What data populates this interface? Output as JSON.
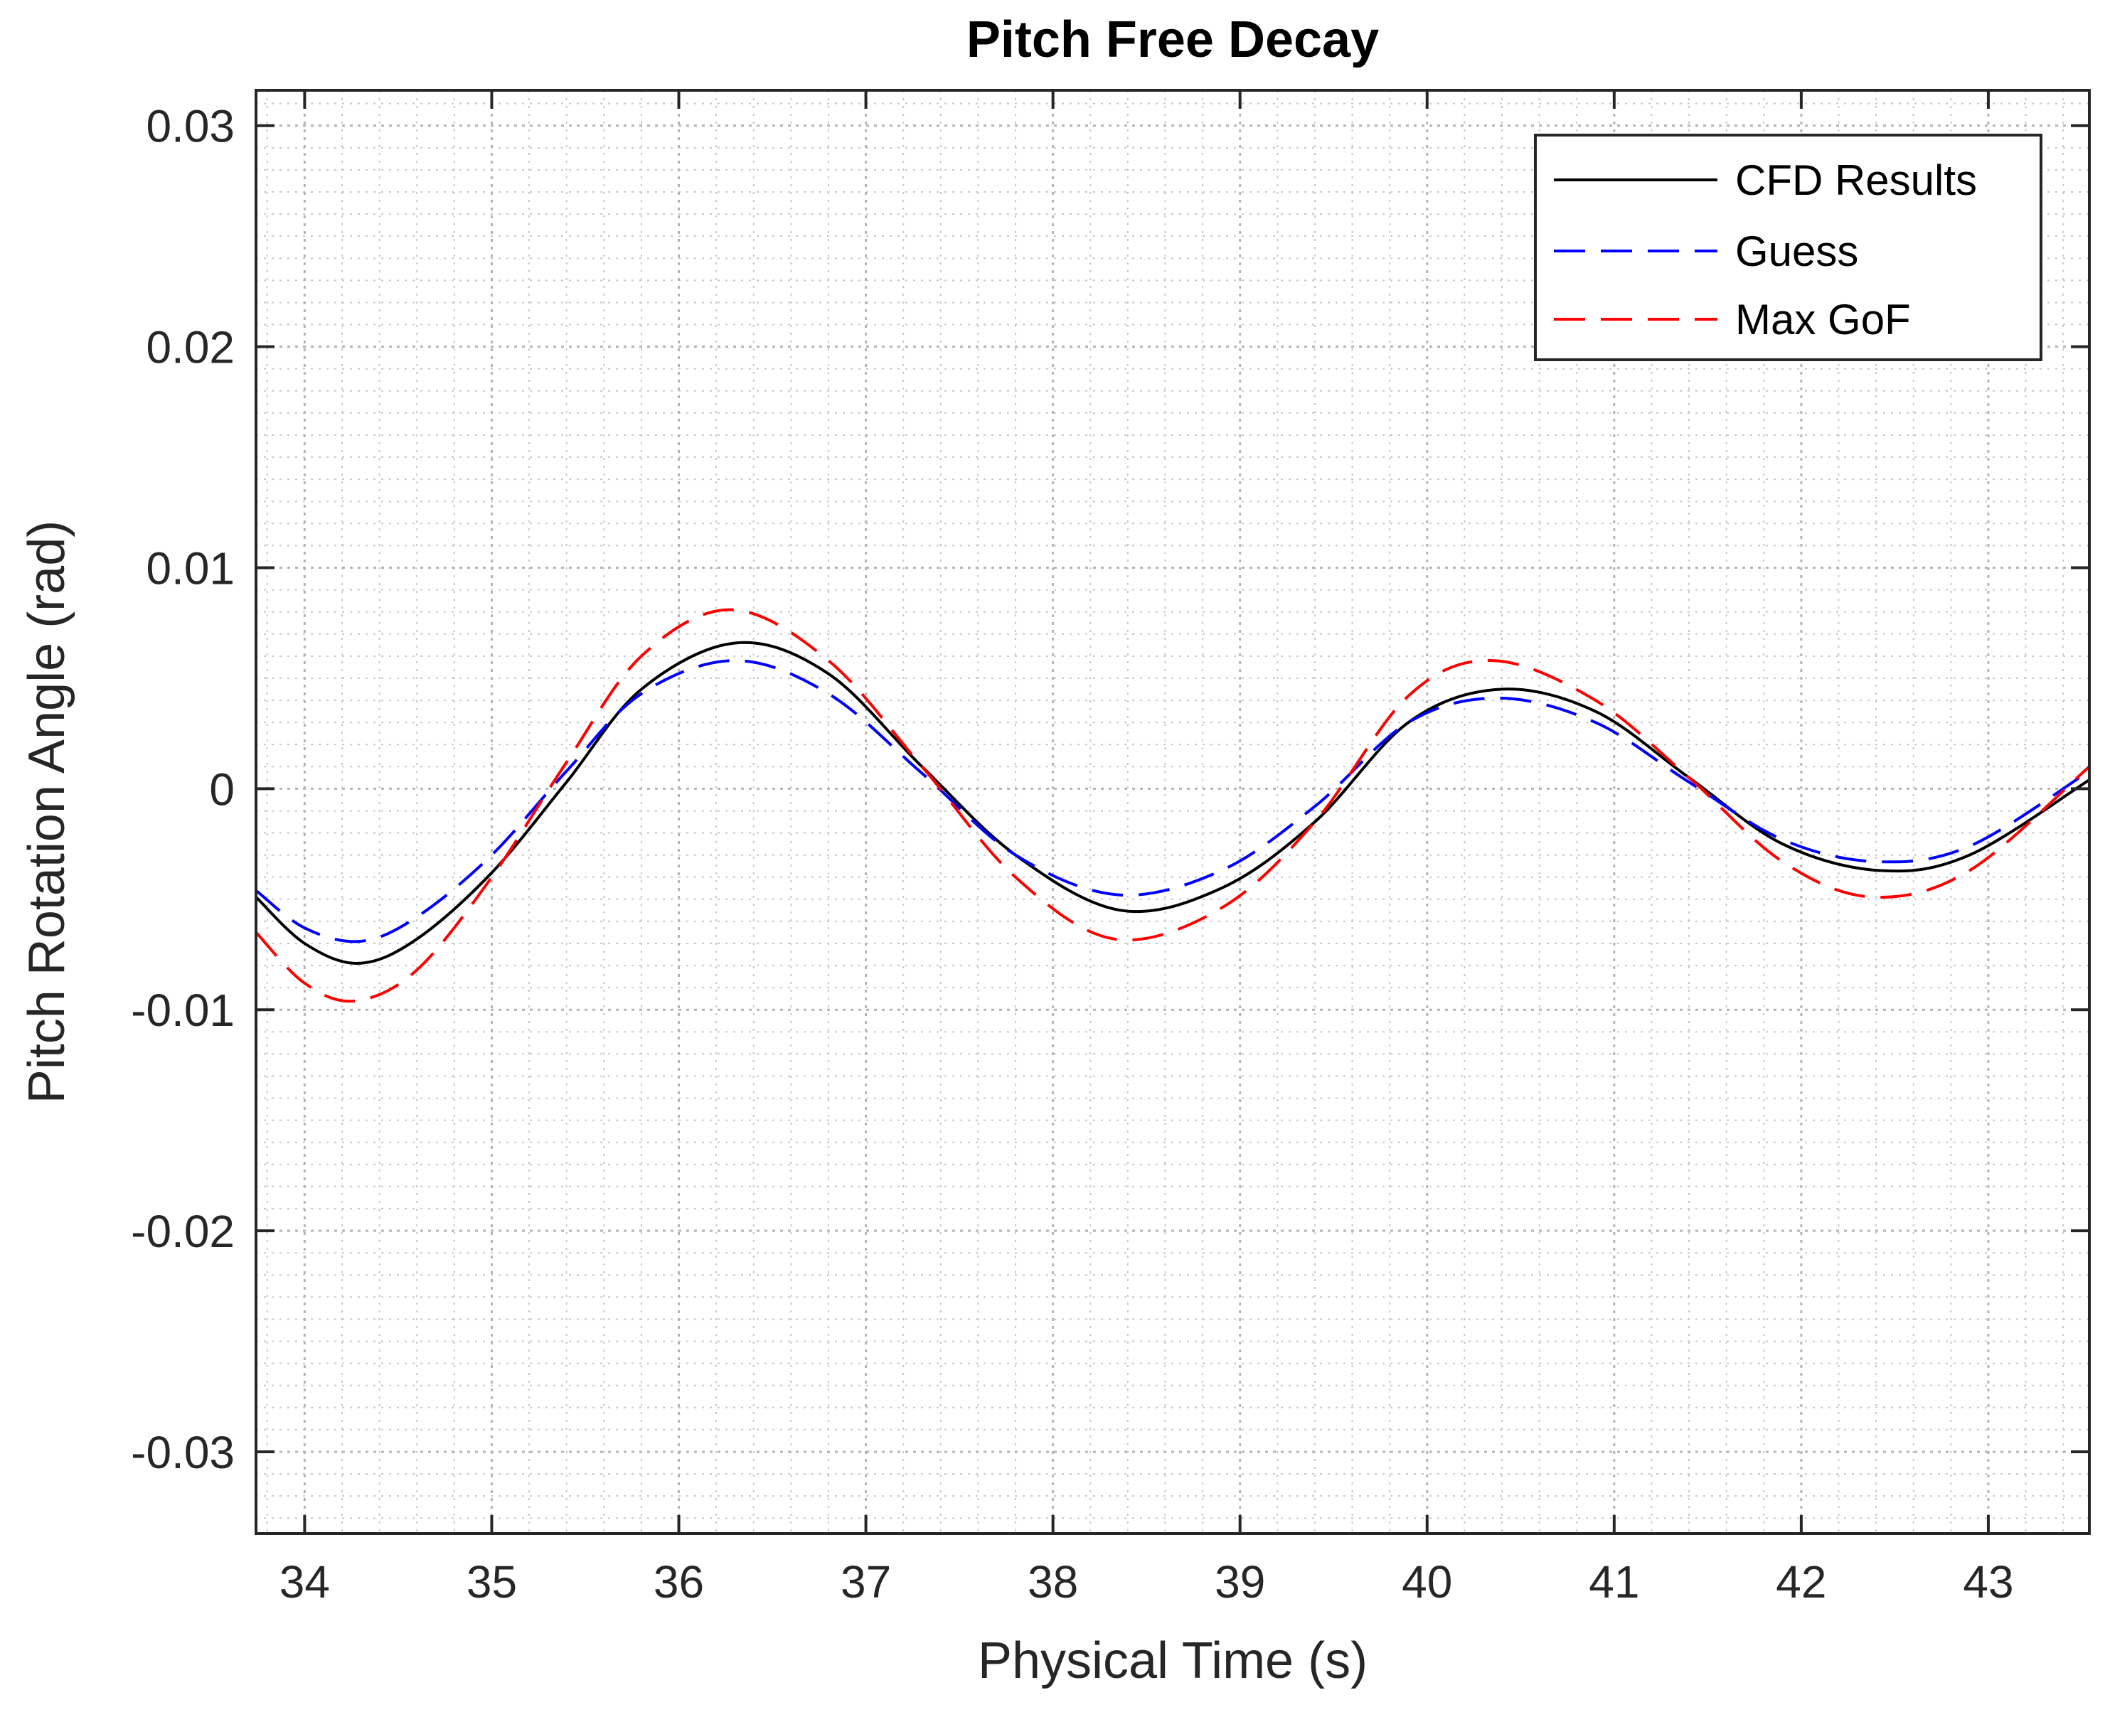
{
  "chart_data": {
    "type": "line",
    "title": "Pitch Free Decay",
    "xlabel": "Physical Time (s)",
    "ylabel": "Pitch Rotation Angle (rad)",
    "xlim": [
      33.74,
      43.54
    ],
    "ylim": [
      -0.0337,
      0.0316
    ],
    "xticks": [
      34,
      35,
      36,
      37,
      38,
      39,
      40,
      41,
      42,
      43
    ],
    "xtick_labels": [
      "34",
      "35",
      "36",
      "37",
      "38",
      "39",
      "40",
      "41",
      "42",
      "43"
    ],
    "yticks": [
      0.03,
      0.02,
      0.01,
      0,
      -0.01,
      -0.02,
      -0.03
    ],
    "ytick_labels": [
      "0.03",
      "0.02",
      "0.01",
      "0",
      "-0.01",
      "-0.02",
      "-0.03"
    ],
    "grid": true,
    "minor_grid": true,
    "legend_position": "top-right",
    "series": [
      {
        "name": "CFD Results",
        "color": "#000000",
        "style": "solid",
        "x": [
          33.74,
          34.0,
          34.29,
          34.6,
          35.0,
          35.4,
          35.8,
          36.31,
          36.8,
          37.3,
          37.8,
          38.36,
          38.9,
          39.4,
          39.9,
          40.39,
          40.9,
          41.4,
          41.9,
          42.42,
          42.9,
          43.54
        ],
        "y": [
          -0.0049,
          -0.007,
          -0.0079,
          -0.0068,
          -0.0038,
          0.0003,
          0.0045,
          0.0066,
          0.0052,
          0.001,
          -0.003,
          -0.0055,
          -0.0045,
          -0.0015,
          0.003,
          0.0045,
          0.0035,
          0.0005,
          -0.0025,
          -0.0037,
          -0.003,
          0.0004
        ]
      },
      {
        "name": "Guess",
        "color": "#0000ff",
        "style": "dashed",
        "x": [
          33.74,
          34.0,
          34.3,
          34.6,
          35.0,
          35.4,
          35.8,
          36.3,
          36.8,
          37.3,
          37.8,
          38.35,
          38.9,
          39.4,
          39.9,
          40.38,
          40.9,
          41.4,
          41.9,
          42.4,
          42.9,
          43.54
        ],
        "y": [
          -0.0046,
          -0.0063,
          -0.0069,
          -0.0058,
          -0.003,
          0.0008,
          0.0043,
          0.0058,
          0.0043,
          0.0007,
          -0.003,
          -0.0048,
          -0.0037,
          -0.0008,
          0.003,
          0.0041,
          0.003,
          0.0003,
          -0.0023,
          -0.0033,
          -0.0026,
          0.0008
        ]
      },
      {
        "name": "Max GoF",
        "color": "#ff0000",
        "style": "dashed",
        "x": [
          33.74,
          34.0,
          34.27,
          34.6,
          35.0,
          35.4,
          35.8,
          36.28,
          36.8,
          37.3,
          37.8,
          38.33,
          38.9,
          39.4,
          39.9,
          40.35,
          40.9,
          41.4,
          41.9,
          42.38,
          42.9,
          43.54
        ],
        "y": [
          -0.0065,
          -0.0088,
          -0.0096,
          -0.0082,
          -0.004,
          0.0012,
          0.006,
          0.0081,
          0.0058,
          0.001,
          -0.004,
          -0.0068,
          -0.0054,
          -0.0015,
          0.0042,
          0.0058,
          0.004,
          0.0005,
          -0.0033,
          -0.0049,
          -0.0037,
          0.001
        ]
      }
    ]
  }
}
